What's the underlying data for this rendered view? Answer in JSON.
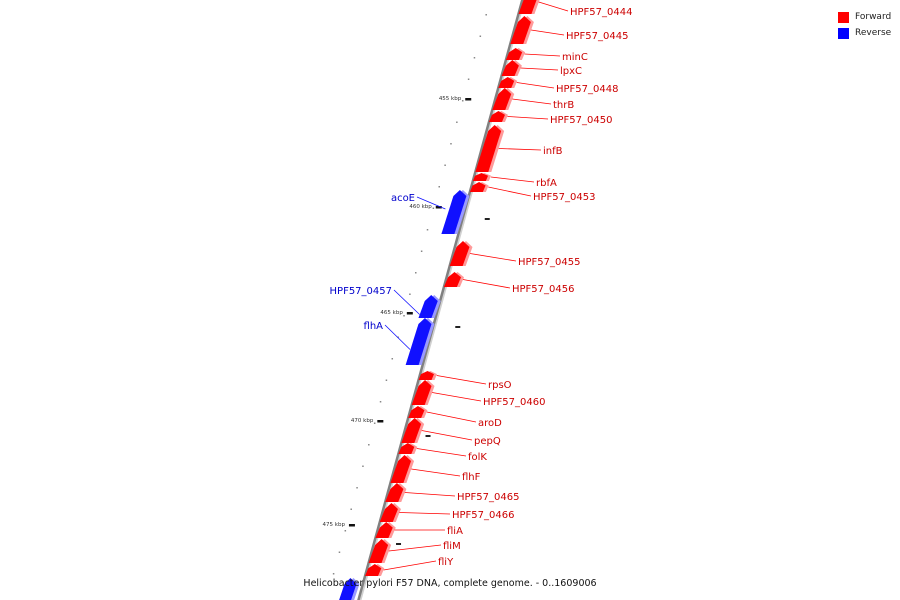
{
  "legend": {
    "forward_label": "Forward",
    "reverse_label": "Reverse",
    "forward_color": "#ff0000",
    "reverse_color": "#0000ff"
  },
  "footer": {
    "caption": "Helicobacter pylori F57 DNA, complete genome. - 0..1609006"
  },
  "colors": {
    "forward": "#ff0000",
    "reverse": "#1010ff",
    "backbone": "#808080",
    "forward_label": "#cc0000",
    "reverse_label": "#0000cc"
  },
  "map": {
    "ticks": [
      {
        "label": "455 kbp"
      },
      {
        "label": "460 kbp"
      },
      {
        "label": "465 kbp"
      },
      {
        "label": "470 kbp"
      },
      {
        "label": "475 kbp"
      }
    ],
    "forward_genes": [
      {
        "name": "HPF57_0444"
      },
      {
        "name": "HPF57_0445"
      },
      {
        "name": "minC"
      },
      {
        "name": "lpxC"
      },
      {
        "name": "HPF57_0448"
      },
      {
        "name": "thrB"
      },
      {
        "name": "HPF57_0450"
      },
      {
        "name": "infB"
      },
      {
        "name": "rbfA"
      },
      {
        "name": "HPF57_0453"
      },
      {
        "name": "HPF57_0455"
      },
      {
        "name": "HPF57_0456"
      },
      {
        "name": "rpsO"
      },
      {
        "name": "HPF57_0460"
      },
      {
        "name": "aroD"
      },
      {
        "name": "pepQ"
      },
      {
        "name": "folK"
      },
      {
        "name": "flhF"
      },
      {
        "name": "HPF57_0465"
      },
      {
        "name": "HPF57_0466"
      },
      {
        "name": "fliA"
      },
      {
        "name": "fliM"
      },
      {
        "name": "fliY"
      }
    ],
    "reverse_genes": [
      {
        "name": "acoE"
      },
      {
        "name": "HPF57_0457"
      },
      {
        "name": "flhA"
      }
    ]
  }
}
